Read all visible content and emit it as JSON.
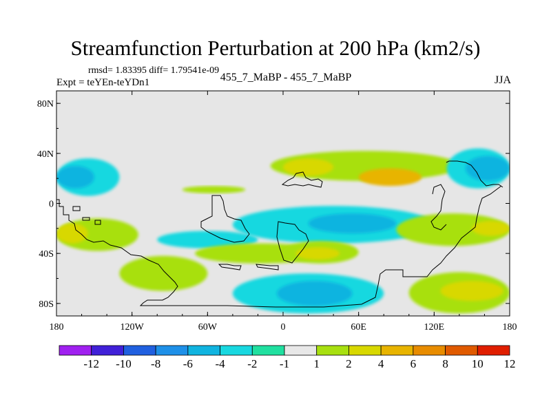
{
  "header": {
    "title": "Streamfunction Perturbation at 200 hPa (km2/s)",
    "stats": "rmsd= 1.83395 diff= 1.79541e-09",
    "experiment": "Expt = teYEn-teYDn1",
    "case_label": "455_7_MaBP - 455_7_MaBP",
    "season": "JJA"
  },
  "chart_data": {
    "type": "heatmap",
    "title": "Streamfunction Perturbation at 200 hPa (km2/s)",
    "units": "km2/s",
    "x_axis": {
      "range": [
        -180,
        180
      ],
      "ticks": [
        -180,
        -120,
        -60,
        0,
        60,
        120,
        180
      ],
      "tick_labels": [
        "180",
        "120W",
        "60W",
        "0",
        "60E",
        "120E",
        "180"
      ]
    },
    "y_axis": {
      "range": [
        -90,
        90
      ],
      "ticks": [
        80,
        40,
        0,
        -40,
        -80
      ],
      "tick_labels": [
        "80N",
        "40N",
        "0",
        "40S",
        "80S"
      ]
    },
    "colorbar": {
      "colors": [
        "#a020f0",
        "#4020d8",
        "#2060e0",
        "#1e90e8",
        "#10b4e0",
        "#18d8e0",
        "#20e0a0",
        "#e8e8e8",
        "#a8e010",
        "#d8d800",
        "#e8b400",
        "#e88c00",
        "#e05a00",
        "#e01e00"
      ],
      "boundary_labels": [
        "-12",
        "-10",
        "-8",
        "-6",
        "-4",
        "-2",
        "-1",
        "1",
        "2",
        "4",
        "6",
        "8",
        "10",
        "12"
      ]
    },
    "anomaly_regions": [
      {
        "level": -2,
        "lon": [
          -180,
          -130
        ],
        "lat": [
          6,
          36
        ]
      },
      {
        "level": -4,
        "lon": [
          -180,
          -150
        ],
        "lat": [
          12,
          30
        ]
      },
      {
        "level": 2,
        "lon": [
          -180,
          -115
        ],
        "lat": [
          -12,
          -38
        ]
      },
      {
        "level": 4,
        "lon": [
          -180,
          -155
        ],
        "lat": [
          -16,
          -32
        ]
      },
      {
        "level": 2,
        "lon": [
          -130,
          -60
        ],
        "lat": [
          -42,
          -70
        ]
      },
      {
        "level": -2,
        "lon": [
          -100,
          -20
        ],
        "lat": [
          -22,
          -36
        ]
      },
      {
        "level": 2,
        "lon": [
          -70,
          35
        ],
        "lat": [
          -32,
          -48
        ]
      },
      {
        "level": -2,
        "lon": [
          -40,
          80
        ],
        "lat": [
          -56,
          -88
        ]
      },
      {
        "level": -4,
        "lon": [
          -5,
          55
        ],
        "lat": [
          -62,
          -82
        ]
      },
      {
        "level": 2,
        "lon": [
          -10,
          140
        ],
        "lat": [
          18,
          42
        ]
      },
      {
        "level": 4,
        "lon": [
          0,
          40
        ],
        "lat": [
          22,
          36
        ]
      },
      {
        "level": 6,
        "lon": [
          60,
          110
        ],
        "lat": [
          14,
          28
        ]
      },
      {
        "level": -2,
        "lon": [
          -40,
          120
        ],
        "lat": [
          -2,
          -32
        ]
      },
      {
        "level": -4,
        "lon": [
          20,
          90
        ],
        "lat": [
          -8,
          -24
        ]
      },
      {
        "level": 2,
        "lon": [
          0,
          60
        ],
        "lat": [
          -30,
          -48
        ]
      },
      {
        "level": 4,
        "lon": [
          10,
          45
        ],
        "lat": [
          -35,
          -45
        ]
      },
      {
        "level": -2,
        "lon": [
          130,
          180
        ],
        "lat": [
          12,
          44
        ]
      },
      {
        "level": -4,
        "lon": [
          145,
          180
        ],
        "lat": [
          18,
          38
        ]
      },
      {
        "level": 2,
        "lon": [
          90,
          180
        ],
        "lat": [
          -8,
          -34
        ]
      },
      {
        "level": 4,
        "lon": [
          150,
          180
        ],
        "lat": [
          -14,
          -26
        ]
      },
      {
        "level": 2,
        "lon": [
          100,
          180
        ],
        "lat": [
          -55,
          -88
        ]
      },
      {
        "level": 4,
        "lon": [
          125,
          175
        ],
        "lat": [
          -62,
          -78
        ]
      },
      {
        "level": 1,
        "lon": [
          -80,
          -30
        ],
        "lat": [
          8,
          14
        ]
      }
    ]
  }
}
